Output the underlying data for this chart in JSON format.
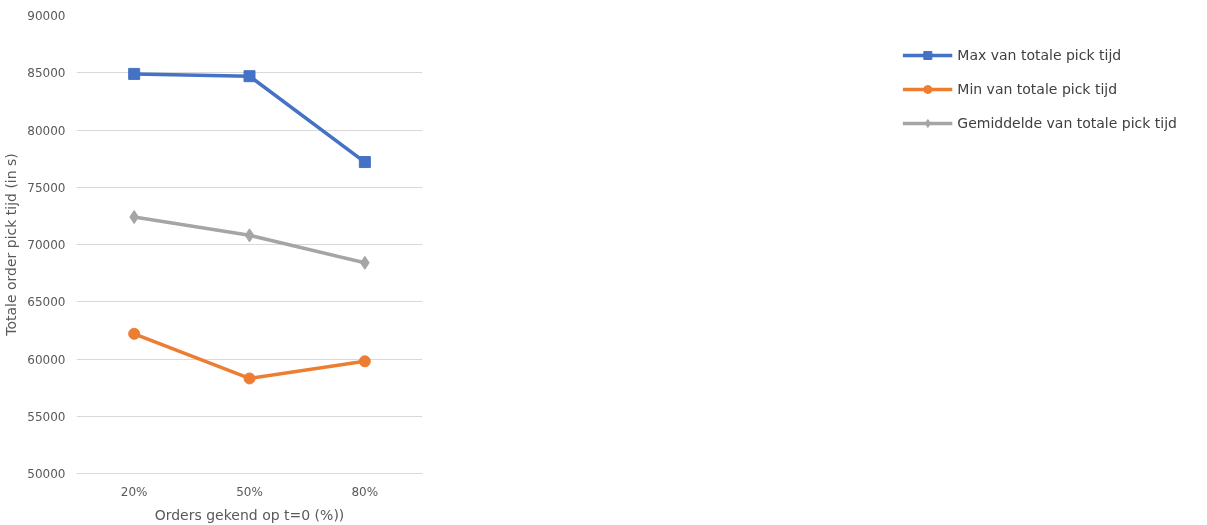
{
  "chart_data": {
    "type": "line",
    "xlabel": "Orders gekend op t=0 (%))",
    "ylabel": "Totale order pick tijd (in s)",
    "categories": [
      "20%",
      "50%",
      "80%"
    ],
    "series": [
      {
        "name": "Max van totale pick tijd",
        "color": "#4472c4",
        "marker": "square",
        "values": [
          84900,
          84700,
          77200
        ]
      },
      {
        "name": "Min van totale pick tijd",
        "color": "#ed7d31",
        "marker": "circle",
        "values": [
          62200,
          58300,
          59800
        ]
      },
      {
        "name": "Gemiddelde van totale pick tijd",
        "color": "#a5a5a5",
        "marker": "diamond",
        "values": [
          72400,
          70800,
          68400
        ]
      }
    ],
    "ylim": [
      50000,
      90000
    ],
    "yticks": [
      50000,
      55000,
      60000,
      65000,
      70000,
      75000,
      80000,
      85000,
      90000
    ],
    "grid": "y",
    "legend": "right",
    "line_style": "solid"
  }
}
